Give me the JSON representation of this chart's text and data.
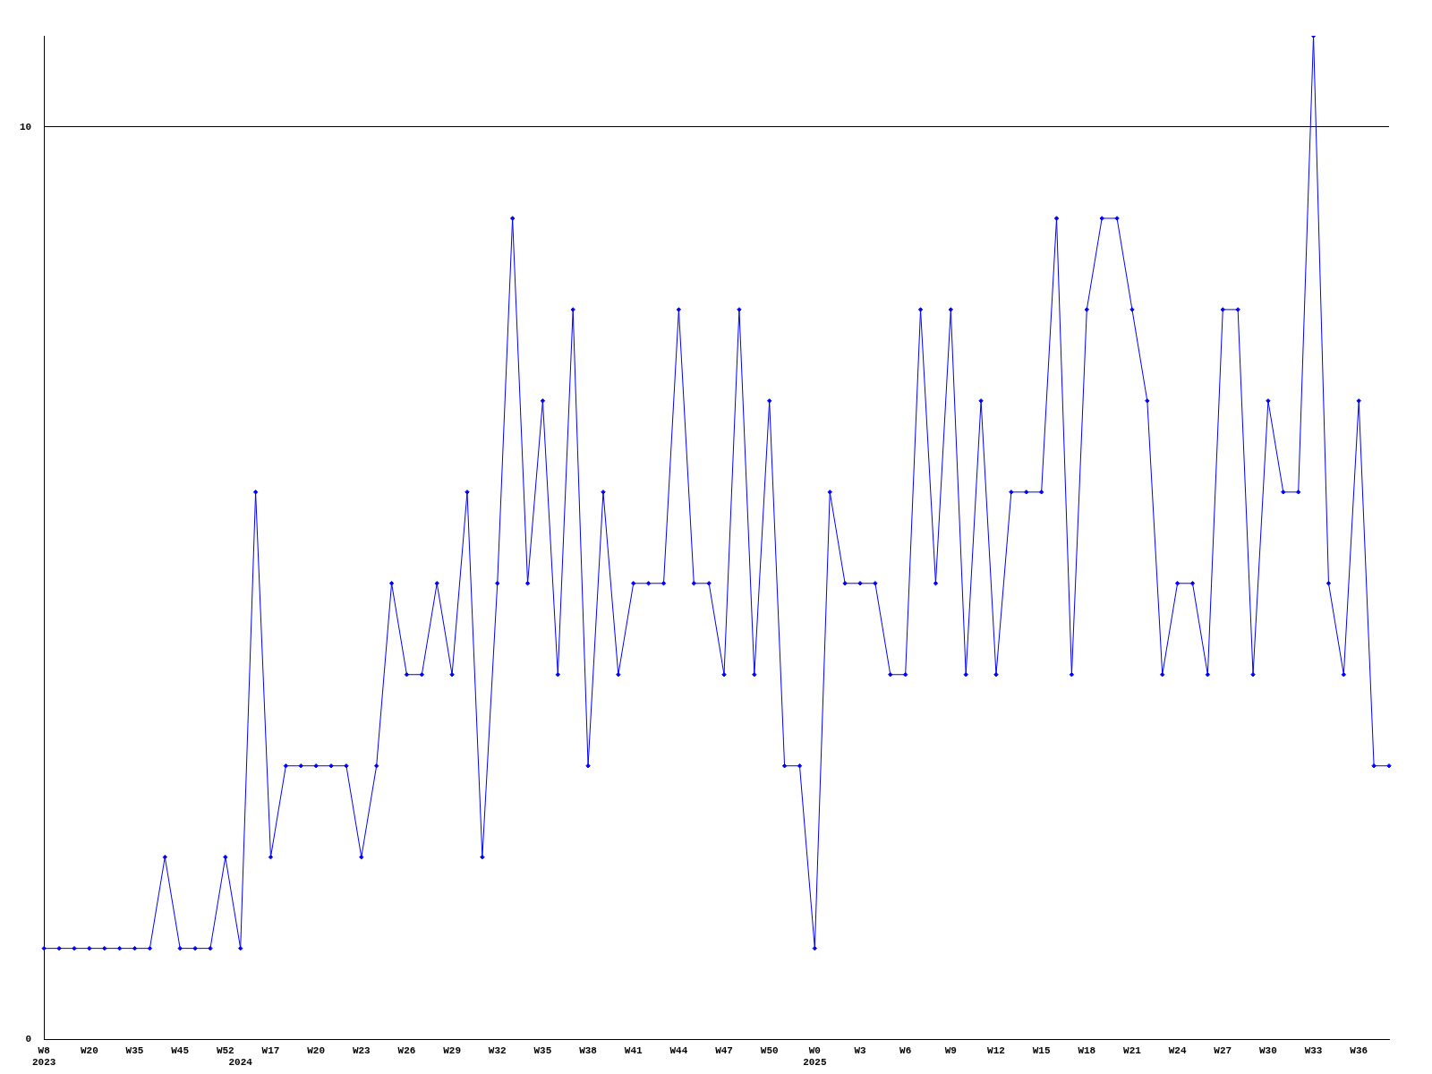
{
  "chart_data": {
    "type": "line",
    "categories": [
      "W8\n2023",
      null,
      null,
      "W20",
      null,
      null,
      "W35",
      null,
      null,
      "W45",
      null,
      null,
      "W52",
      "\n2024",
      null,
      "W17",
      null,
      null,
      "W20",
      null,
      null,
      "W23",
      null,
      null,
      "W26",
      null,
      null,
      "W29",
      null,
      null,
      "W32",
      null,
      null,
      "W35",
      null,
      null,
      "W38",
      null,
      null,
      "W41",
      null,
      null,
      "W44",
      null,
      null,
      "W47",
      null,
      null,
      "W50",
      null,
      null,
      "W0\n2025",
      null,
      null,
      "W3",
      null,
      null,
      "W6",
      null,
      null,
      "W9",
      null,
      null,
      "W12",
      null,
      null,
      "W15",
      null,
      null,
      "W18",
      null,
      null,
      "W21",
      null,
      null,
      "W24",
      null,
      null,
      "W27",
      null,
      null,
      "W30",
      null,
      null,
      "W33",
      null,
      null,
      "W36",
      null,
      null
    ],
    "series": [
      {
        "color": "#0000ff",
        "values": [
          1,
          1,
          1,
          1,
          1,
          1,
          1,
          1,
          2,
          1,
          1,
          1,
          2,
          1,
          6,
          2,
          3,
          3,
          3,
          3,
          3,
          2,
          3,
          5,
          4,
          4,
          5,
          4,
          6,
          2,
          5,
          9,
          5,
          7,
          4,
          8,
          3,
          6,
          4,
          5,
          5,
          5,
          8,
          5,
          5,
          4,
          8,
          4,
          7,
          3,
          3,
          1,
          6,
          5,
          5,
          5,
          4,
          4,
          8,
          5,
          8,
          4,
          7,
          4,
          6,
          6,
          6,
          9,
          4,
          8,
          9,
          9,
          8,
          7,
          4,
          5,
          5,
          4,
          8,
          8,
          4,
          7,
          6,
          6,
          11,
          5,
          4,
          7,
          3,
          3
        ]
      }
    ],
    "ylim": [
      0,
      11
    ],
    "yticks": [
      0,
      10
    ],
    "grid": "y",
    "legend": false,
    "marker": "diamond",
    "line_style": "solid"
  }
}
